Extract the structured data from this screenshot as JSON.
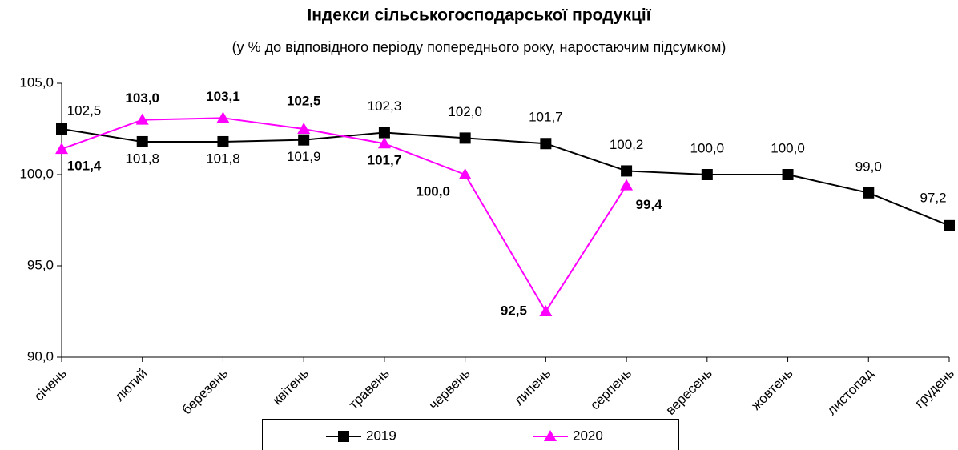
{
  "chart_data": {
    "type": "line",
    "title": "Індекси сільськогосподарської продукції",
    "subtitle": "(у % до відповідного періоду попереднього року, наростаючим підсумком)",
    "categories": [
      "січень",
      "лютий",
      "березень",
      "квітень",
      "травень",
      "червень",
      "липень",
      "серпень",
      "вересень",
      "жовтень",
      "листопад",
      "грудень"
    ],
    "series": [
      {
        "name": "2019",
        "color": "#000000",
        "marker": "square",
        "values": [
          102.5,
          101.8,
          101.8,
          101.9,
          102.3,
          102.0,
          101.7,
          100.2,
          100.0,
          100.0,
          99.0,
          97.2
        ],
        "value_labels": [
          "102,5",
          "101,8",
          "101,8",
          "101,9",
          "102,3",
          "102,0",
          "101,7",
          "100,2",
          "100,0",
          "100,0",
          "99,0",
          "97,2"
        ]
      },
      {
        "name": "2020",
        "color": "#ff00ff",
        "marker": "triangle",
        "values": [
          101.4,
          103.0,
          103.1,
          102.5,
          101.7,
          100.0,
          92.5,
          99.4,
          null,
          null,
          null,
          null
        ],
        "value_labels": [
          "101,4",
          "103,0",
          "103,1",
          "102,5",
          "101,7",
          "100,0",
          "92,5",
          "99,4",
          null,
          null,
          null,
          null
        ]
      }
    ],
    "ylim": [
      90,
      105
    ],
    "yticks": [
      {
        "value": 90,
        "label": "90,0"
      },
      {
        "value": 95,
        "label": "95,0"
      },
      {
        "value": 100,
        "label": "100,0"
      },
      {
        "value": 105,
        "label": "105,0"
      }
    ],
    "grid": false,
    "legend": "bottom"
  }
}
